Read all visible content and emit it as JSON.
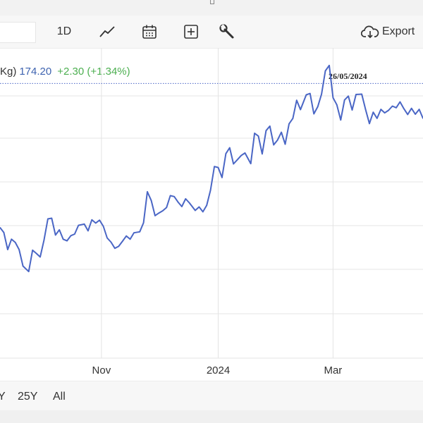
{
  "toolbar": {
    "interval_label": "1D",
    "line_icon": "line-chart-icon",
    "calendar_icon": "calendar-icon",
    "add_icon": "add-indicator-icon",
    "settings_icon": "wrench-icon",
    "export_icon": "cloud-download-icon",
    "export_label": "Export"
  },
  "legend": {
    "unit": "Kg)",
    "price": "174.20",
    "change": "+2.30 (+1.34%)"
  },
  "stamp_date": "26/05/2024",
  "range_buttons": [
    "Y",
    "25Y",
    "All"
  ],
  "chart_data": {
    "type": "line",
    "colors": {
      "line": "#4a66c5",
      "reference_line": "#4a66c5",
      "grid": "#e4e4e4"
    },
    "x_tick_labels": [
      "Nov",
      "2024",
      "Mar"
    ],
    "x_ticks": [
      "2023-11-01",
      "2024-01-01",
      "2024-03-01"
    ],
    "x_range": [
      "2023-09-09",
      "2024-04-17"
    ],
    "y_range": [
      100,
      196
    ],
    "reference_line_value": 185,
    "grid": true,
    "x": [
      "2023-09-09",
      "2023-09-11",
      "2023-09-13",
      "2023-09-15",
      "2023-09-17",
      "2023-09-19",
      "2023-09-21",
      "2023-09-24",
      "2023-09-26",
      "2023-09-28",
      "2023-09-30",
      "2023-10-02",
      "2023-10-04",
      "2023-10-06",
      "2023-10-08",
      "2023-10-10",
      "2023-10-12",
      "2023-10-14",
      "2023-10-16",
      "2023-10-18",
      "2023-10-20",
      "2023-10-23",
      "2023-10-25",
      "2023-10-27",
      "2023-10-29",
      "2023-10-31",
      "2023-11-02",
      "2023-11-04",
      "2023-11-06",
      "2023-11-08",
      "2023-11-10",
      "2023-11-12",
      "2023-11-14",
      "2023-11-16",
      "2023-11-18",
      "2023-11-21",
      "2023-11-23",
      "2023-11-25",
      "2023-11-27",
      "2023-11-29",
      "2023-12-01",
      "2023-12-03",
      "2023-12-05",
      "2023-12-07",
      "2023-12-09",
      "2023-12-11",
      "2023-12-13",
      "2023-12-15",
      "2023-12-17",
      "2023-12-20",
      "2023-12-22",
      "2023-12-24",
      "2023-12-26",
      "2023-12-28",
      "2023-12-30",
      "2024-01-01",
      "2024-01-03",
      "2024-01-05",
      "2024-01-07",
      "2024-01-09",
      "2024-01-11",
      "2024-01-13",
      "2024-01-15",
      "2024-01-18",
      "2024-01-20",
      "2024-01-22",
      "2024-01-24",
      "2024-01-26",
      "2024-01-28",
      "2024-01-30",
      "2024-02-01",
      "2024-02-03",
      "2024-02-05",
      "2024-02-07",
      "2024-02-09",
      "2024-02-11",
      "2024-02-13",
      "2024-02-16",
      "2024-02-18",
      "2024-02-20",
      "2024-02-22",
      "2024-02-24",
      "2024-02-26",
      "2024-02-28",
      "2024-03-01",
      "2024-03-03",
      "2024-03-05",
      "2024-03-07",
      "2024-03-09",
      "2024-03-11",
      "2024-03-13",
      "2024-03-16",
      "2024-03-18",
      "2024-03-20",
      "2024-03-22",
      "2024-03-24",
      "2024-03-26",
      "2024-03-28",
      "2024-03-30",
      "2024-04-01",
      "2024-04-03",
      "2024-04-05",
      "2024-04-07",
      "2024-04-09",
      "2024-04-11",
      "2024-04-13",
      "2024-04-15",
      "2024-04-17"
    ],
    "series": [
      {
        "values": [
          140.4,
          138.9,
          133.6,
          136.8,
          135.8,
          133.6,
          128.5,
          126.8,
          133.4,
          132.4,
          131.3,
          136.5,
          143.1,
          143.3,
          138.1,
          139.7,
          136.8,
          136.3,
          137.9,
          138.4,
          141.1,
          141.5,
          139.4,
          142.8,
          141.8,
          142.7,
          140.8,
          137.2,
          135.9,
          134.0,
          134.6,
          136.2,
          137.8,
          136.8,
          138.8,
          139.1,
          141.9,
          151.5,
          148.8,
          144.1,
          144.9,
          145.6,
          146.6,
          150.3,
          150.0,
          148.3,
          146.9,
          149.3,
          148.0,
          145.7,
          146.8,
          145.3,
          147.3,
          152.0,
          159.3,
          159.0,
          155.9,
          163.3,
          165.1,
          160.1,
          161.4,
          162.7,
          163.5,
          160.2,
          169.6,
          168.7,
          163.2,
          170.4,
          171.8,
          166.0,
          167.5,
          169.9,
          166.2,
          172.5,
          174.2,
          179.8,
          176.9,
          181.5,
          181.9,
          175.6,
          177.8,
          181.7,
          188.9,
          190.6,
          180.6,
          178.4,
          173.7,
          179.9,
          181.1,
          176.8,
          181.6,
          181.7,
          176.9,
          172.6,
          176.1,
          174.2,
          177.0,
          175.9,
          176.7,
          178.0,
          177.5,
          179.3,
          177.2,
          175.4,
          177.3,
          175.5,
          177.0,
          174.2
        ]
      }
    ]
  }
}
